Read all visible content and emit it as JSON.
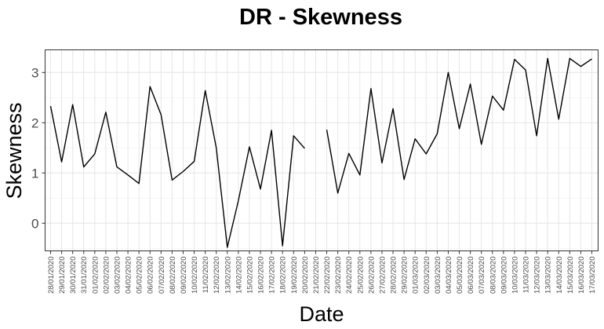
{
  "chart_data": {
    "type": "line",
    "title": "DR - Skewness",
    "xlabel": "Date",
    "ylabel": "Skewness",
    "ylim": [
      -0.55,
      3.45
    ],
    "yticks": [
      0,
      1,
      2,
      3
    ],
    "grid": true,
    "legend": "none",
    "line_color": "#000000",
    "categories": [
      "28/01/2020",
      "29/01/2020",
      "30/01/2020",
      "31/01/2020",
      "01/02/2020",
      "02/02/2020",
      "03/02/2020",
      "04/02/2020",
      "05/02/2020",
      "06/02/2020",
      "07/02/2020",
      "08/02/2020",
      "09/02/2020",
      "10/02/2020",
      "11/02/2020",
      "12/02/2020",
      "13/02/2020",
      "14/02/2020",
      "15/02/2020",
      "16/02/2020",
      "17/02/2020",
      "18/02/2020",
      "19/02/2020",
      "20/02/2020",
      "21/02/2020",
      "22/02/2020",
      "23/02/2020",
      "24/02/2020",
      "25/02/2020",
      "26/02/2020",
      "27/02/2020",
      "28/02/2020",
      "29/02/2020",
      "01/03/2020",
      "02/03/2020",
      "03/03/2020",
      "04/03/2020",
      "05/03/2020",
      "06/03/2020",
      "07/03/2020",
      "08/03/2020",
      "09/03/2020",
      "10/03/2020",
      "11/03/2020",
      "12/03/2020",
      "13/03/2020",
      "14/03/2020",
      "15/03/2020",
      "16/03/2020",
      "17/03/2020"
    ],
    "series": [
      {
        "values": [
          2.33,
          1.22,
          2.36,
          1.12,
          1.38,
          2.21,
          1.12,
          0.96,
          0.79,
          2.72,
          2.16,
          0.86,
          1.03,
          1.23,
          2.64,
          1.5,
          -0.48,
          0.45,
          1.52,
          0.68,
          1.85,
          -0.45,
          1.74,
          1.49,
          null,
          1.86,
          0.6,
          1.39,
          0.96,
          2.68,
          1.2,
          2.28,
          0.87,
          1.68,
          1.38,
          1.78,
          3.0,
          1.88,
          2.77,
          1.57,
          2.53,
          2.25,
          3.26,
          3.05,
          1.74,
          3.28,
          2.07,
          3.28,
          3.12,
          3.27
        ]
      }
    ]
  }
}
